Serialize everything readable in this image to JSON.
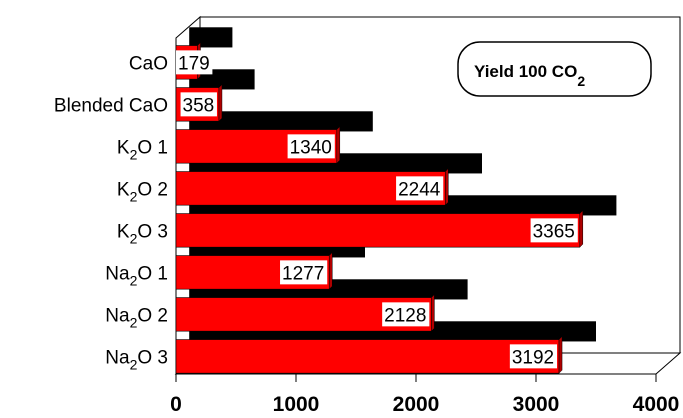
{
  "chart_data": {
    "type": "bar",
    "orientation": "horizontal",
    "style": "3d",
    "categories": [
      {
        "main": "CaO",
        "sub": "",
        "suffix": ""
      },
      {
        "main": "Blended CaO",
        "sub": "",
        "suffix": ""
      },
      {
        "main": "K",
        "sub": "2",
        "suffix": "O  1"
      },
      {
        "main": "K",
        "sub": "2",
        "suffix": "O   2"
      },
      {
        "main": "K",
        "sub": "2",
        "suffix": "O   3"
      },
      {
        "main": "Na",
        "sub": "2",
        "suffix": "O  1"
      },
      {
        "main": "Na",
        "sub": "2",
        "suffix": "O   2"
      },
      {
        "main": "Na",
        "sub": "2",
        "suffix": "O   3"
      }
    ],
    "series": [
      {
        "values": [
          360,
          545,
          1530,
          2440,
          3560,
          1465,
          2320,
          3390
        ],
        "color": "#000000"
      },
      {
        "values": [
          179,
          358,
          1340,
          2244,
          3365,
          1277,
          2128,
          3192
        ],
        "color": "#ff0000",
        "labels": [
          "179",
          "358",
          "1340",
          "2244",
          "3365",
          "1277",
          "2128",
          "3192"
        ]
      }
    ],
    "xlim": [
      0,
      4000
    ],
    "xticks": [
      "0",
      "1000",
      "2000",
      "3000",
      "4000"
    ],
    "legend_box": {
      "text": "Yield 100 CO",
      "sub": "2",
      "position": "top-right"
    },
    "grid": false
  }
}
